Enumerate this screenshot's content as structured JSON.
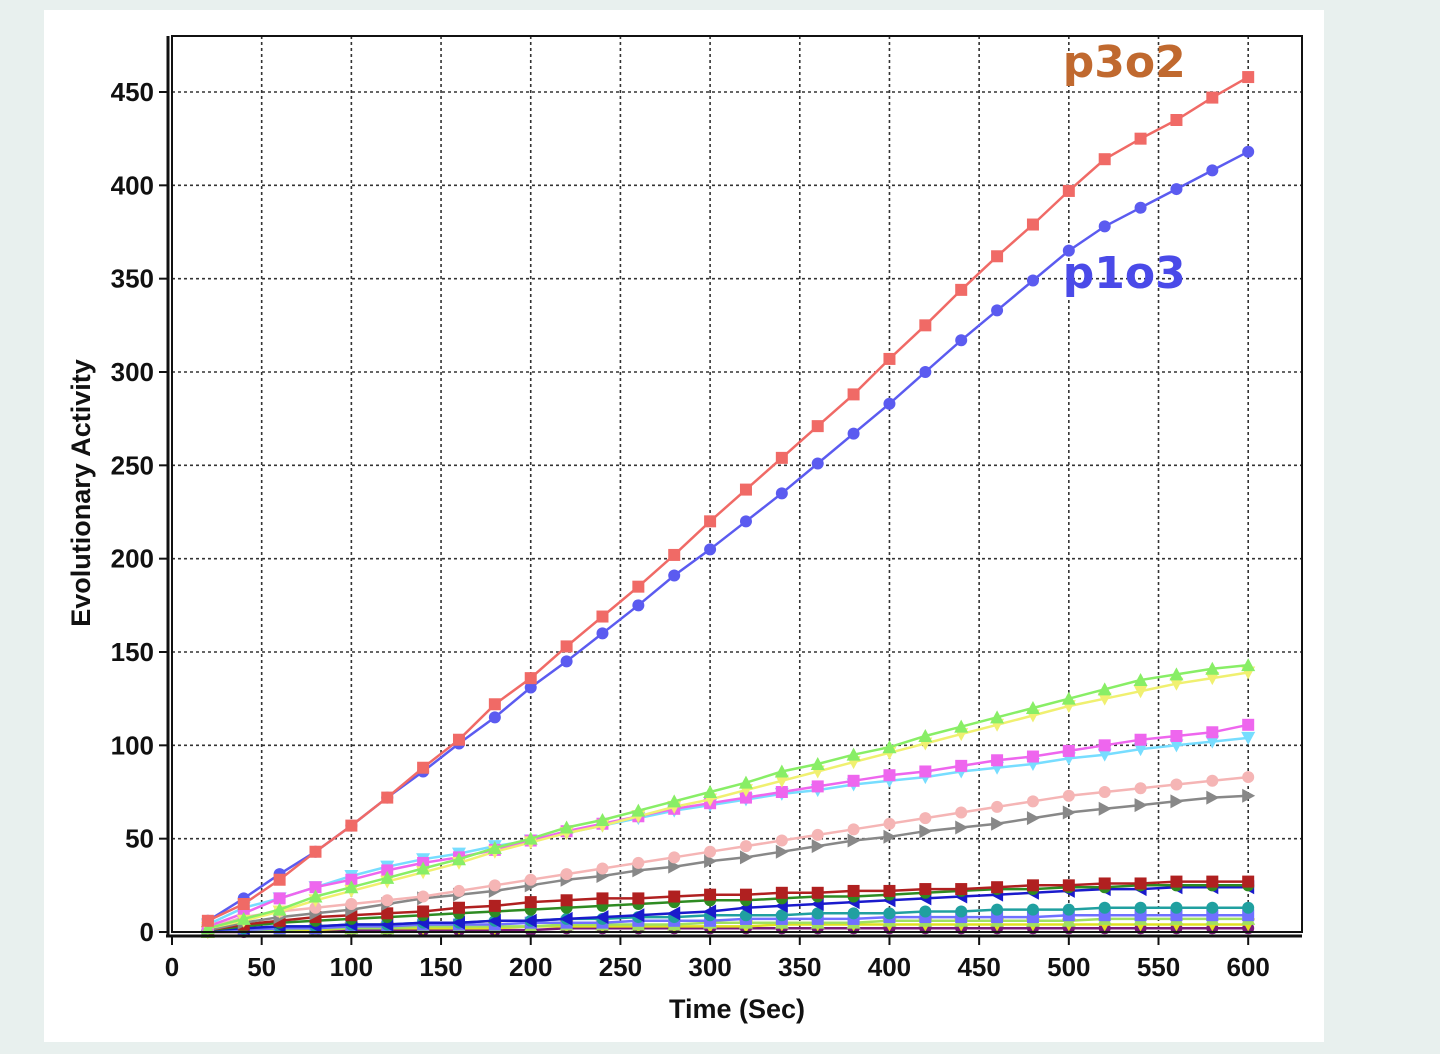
{
  "chart_data": {
    "type": "line",
    "xlabel": "Time (Sec)",
    "ylabel": "Evolutionary Activity",
    "xlim": [
      0,
      630
    ],
    "ylim": [
      0,
      480
    ],
    "xticks": [
      0,
      50,
      100,
      150,
      200,
      250,
      300,
      350,
      400,
      450,
      500,
      550,
      600
    ],
    "yticks": [
      0,
      50,
      100,
      150,
      200,
      250,
      300,
      350,
      400,
      450
    ],
    "grid": true,
    "annotations": [
      {
        "text": "p3o2",
        "color": "#c0692f",
        "x": 510,
        "y": 458
      },
      {
        "text": "p1o3",
        "color": "#4a4ae8",
        "x": 510,
        "y": 345
      }
    ],
    "x": [
      20,
      40,
      60,
      80,
      100,
      120,
      140,
      160,
      180,
      200,
      220,
      240,
      260,
      280,
      300,
      320,
      340,
      360,
      380,
      400,
      420,
      440,
      460,
      480,
      500,
      520,
      540,
      560,
      580,
      600
    ],
    "series": [
      {
        "color": "#f06a66",
        "marker": "square",
        "values": [
          6,
          15,
          28,
          43,
          57,
          72,
          88,
          103,
          122,
          136,
          153,
          169,
          185,
          202,
          220,
          237,
          254,
          271,
          288,
          307,
          325,
          344,
          362,
          379,
          397,
          414,
          425,
          435,
          447,
          458
        ]
      },
      {
        "color": "#5b5bf0",
        "marker": "circle",
        "values": [
          6,
          18,
          31,
          43,
          57,
          72,
          86,
          101,
          115,
          131,
          145,
          160,
          175,
          191,
          205,
          220,
          235,
          251,
          267,
          283,
          300,
          317,
          333,
          349,
          365,
          378,
          388,
          398,
          408,
          418
        ]
      },
      {
        "color": "#88ee66",
        "marker": "triangle",
        "values": [
          2,
          7,
          12,
          19,
          24,
          29,
          34,
          39,
          45,
          50,
          56,
          60,
          65,
          70,
          75,
          80,
          86,
          90,
          95,
          99,
          105,
          110,
          115,
          120,
          125,
          130,
          135,
          138,
          141,
          143
        ]
      },
      {
        "color": "#f0f070",
        "marker": "triangle-down",
        "values": [
          2,
          6,
          11,
          17,
          22,
          27,
          32,
          37,
          43,
          48,
          53,
          57,
          62,
          67,
          71,
          76,
          81,
          86,
          91,
          96,
          101,
          106,
          111,
          116,
          121,
          125,
          129,
          133,
          136,
          139
        ]
      },
      {
        "color": "#ee66ee",
        "marker": "square",
        "values": [
          3,
          10,
          18,
          24,
          28,
          33,
          37,
          40,
          44,
          49,
          54,
          58,
          62,
          66,
          69,
          72,
          75,
          78,
          81,
          84,
          86,
          89,
          92,
          94,
          97,
          100,
          103,
          105,
          107,
          111
        ]
      },
      {
        "color": "#77ddff",
        "marker": "triangle-down",
        "values": [
          4,
          13,
          18,
          24,
          30,
          35,
          39,
          42,
          46,
          49,
          53,
          57,
          61,
          65,
          68,
          71,
          74,
          76,
          79,
          81,
          83,
          86,
          88,
          90,
          93,
          95,
          98,
          100,
          102,
          104
        ]
      },
      {
        "color": "#f5b5b5",
        "marker": "circle",
        "values": [
          2,
          8,
          11,
          13,
          15,
          17,
          19,
          22,
          25,
          28,
          31,
          34,
          37,
          40,
          43,
          46,
          49,
          52,
          55,
          58,
          61,
          64,
          67,
          70,
          73,
          75,
          77,
          79,
          81,
          83
        ]
      },
      {
        "color": "#888888",
        "marker": "triangle-right",
        "values": [
          1,
          5,
          8,
          10,
          12,
          15,
          18,
          20,
          22,
          25,
          28,
          30,
          33,
          35,
          38,
          40,
          43,
          46,
          49,
          51,
          54,
          56,
          58,
          61,
          64,
          66,
          68,
          70,
          72,
          73
        ]
      },
      {
        "color": "#b02020",
        "marker": "square",
        "values": [
          1,
          4,
          6,
          8,
          9,
          10,
          11,
          13,
          14,
          16,
          17,
          18,
          18,
          19,
          20,
          20,
          21,
          21,
          22,
          22,
          23,
          23,
          24,
          25,
          25,
          26,
          26,
          27,
          27,
          27
        ]
      },
      {
        "color": "#2e8b22",
        "marker": "circle",
        "values": [
          1,
          3,
          5,
          6,
          7,
          8,
          9,
          10,
          11,
          12,
          13,
          14,
          15,
          16,
          17,
          17,
          18,
          19,
          19,
          20,
          21,
          22,
          23,
          23,
          24,
          24,
          25,
          25,
          25,
          25
        ]
      },
      {
        "color": "#1a1acc",
        "marker": "triangle-left",
        "values": [
          1,
          2,
          3,
          3,
          4,
          4,
          5,
          5,
          6,
          6,
          7,
          8,
          9,
          10,
          11,
          13,
          14,
          15,
          16,
          17,
          18,
          19,
          20,
          21,
          22,
          23,
          23,
          24,
          24,
          24
        ]
      },
      {
        "color": "#20a0a0",
        "marker": "circle",
        "values": [
          1,
          2,
          3,
          3,
          4,
          4,
          5,
          5,
          6,
          6,
          7,
          7,
          8,
          8,
          9,
          9,
          9,
          10,
          10,
          10,
          11,
          11,
          12,
          12,
          12,
          13,
          13,
          13,
          13,
          13
        ]
      },
      {
        "color": "#7070ff",
        "marker": "square",
        "values": [
          1,
          1,
          2,
          2,
          3,
          3,
          4,
          4,
          4,
          5,
          5,
          5,
          6,
          6,
          6,
          7,
          7,
          7,
          7,
          8,
          8,
          8,
          8,
          8,
          9,
          9,
          9,
          9,
          9,
          9
        ]
      },
      {
        "color": "#a0e060",
        "marker": "triangle",
        "values": [
          0,
          1,
          1,
          2,
          2,
          2,
          3,
          3,
          3,
          3,
          4,
          4,
          4,
          4,
          5,
          5,
          5,
          5,
          5,
          6,
          6,
          6,
          6,
          6,
          6,
          7,
          7,
          7,
          7,
          7
        ]
      },
      {
        "color": "#e0e020",
        "marker": "triangle-down",
        "values": [
          0,
          1,
          1,
          1,
          2,
          2,
          2,
          2,
          2,
          3,
          3,
          3,
          3,
          3,
          3,
          3,
          4,
          4,
          4,
          4,
          4,
          4,
          4,
          4,
          4,
          4,
          4,
          4,
          4,
          4
        ]
      },
      {
        "color": "#7a1a7a",
        "marker": "circle",
        "values": [
          0,
          0,
          1,
          1,
          1,
          1,
          1,
          1,
          1,
          1,
          2,
          2,
          2,
          2,
          2,
          2,
          2,
          2,
          2,
          2,
          2,
          2,
          2,
          2,
          2,
          2,
          2,
          2,
          2,
          2
        ]
      }
    ]
  }
}
